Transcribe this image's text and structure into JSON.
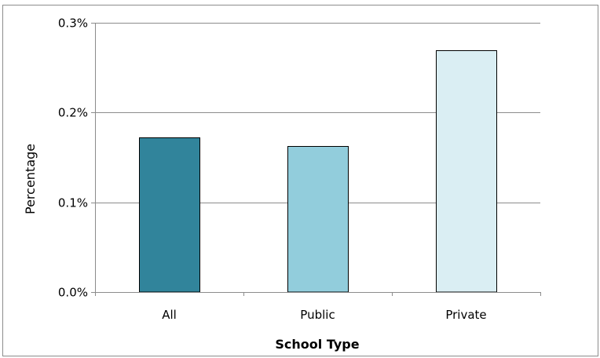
{
  "chart_data": {
    "type": "bar",
    "title": "",
    "categories": [
      "All",
      "Public",
      "Private"
    ],
    "values": [
      0.172,
      0.163,
      0.269
    ],
    "colors": [
      "#31849b",
      "#92cddc",
      "#daeef3"
    ],
    "bar_border_color": "#000000",
    "xlabel": "School Type",
    "ylabel": "Percentage",
    "ylim": [
      0,
      0.3
    ],
    "yticks": [
      0,
      0.1,
      0.2,
      0.3
    ],
    "ytick_labels": [
      "0.0%",
      "0.1%",
      "0.2%",
      "0.3%"
    ],
    "grid": true,
    "legend": "none",
    "gridline_color": "#8c8c8c"
  }
}
